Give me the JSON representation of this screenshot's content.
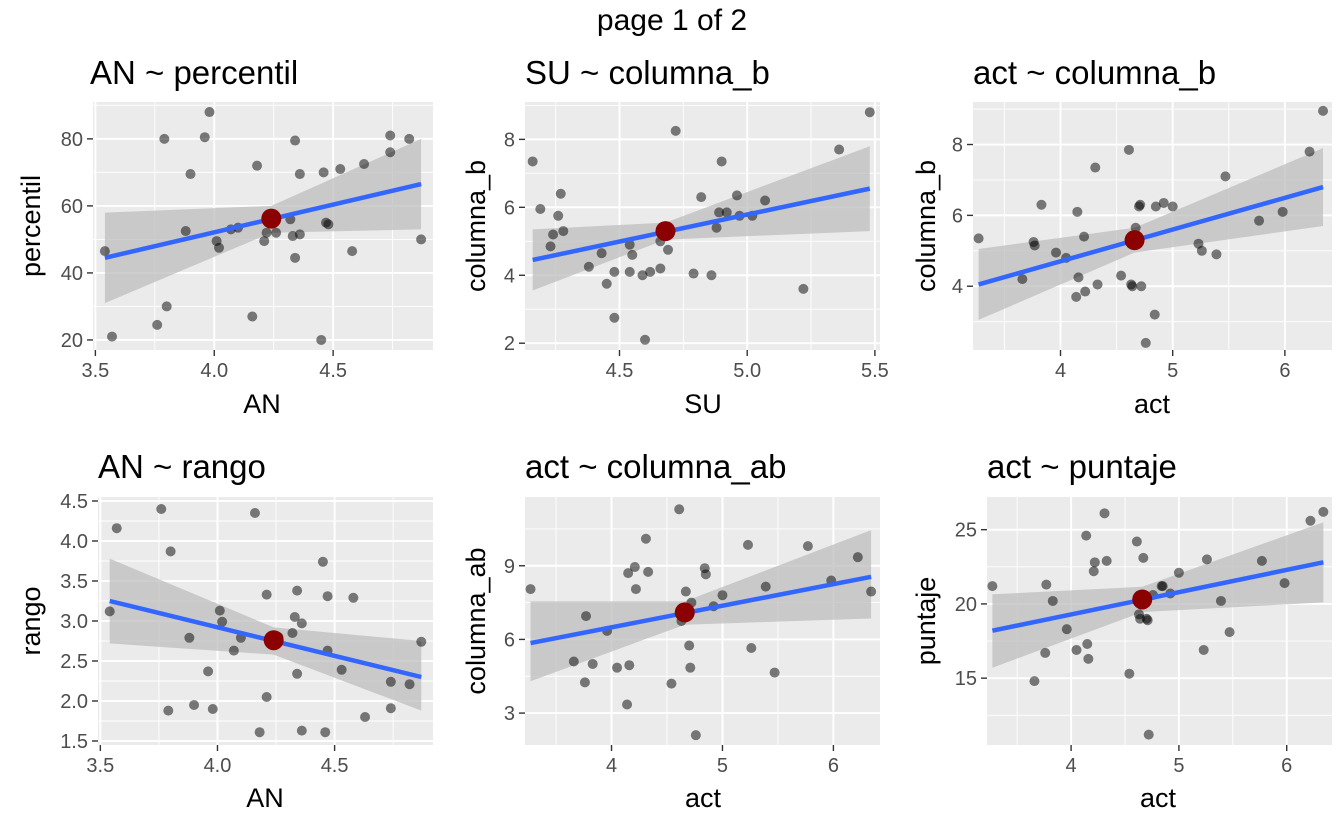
{
  "page_label": "page 1 of 2",
  "colors": {
    "panel_background": "#ebebeb",
    "grid_major": "#ffffff",
    "points": "#000000",
    "fit_line": "#3366ff",
    "ribbon": "#bebebe",
    "mean_point": "#8b0000"
  },
  "chart_data": [
    {
      "type": "scatter",
      "title": "AN ~ percentil",
      "xlabel": "AN",
      "ylabel": "percentil",
      "xlim": [
        3.49,
        4.92
      ],
      "ylim": [
        17,
        91
      ],
      "xticks": [
        3.5,
        4.0,
        4.5
      ],
      "xtick_labels": [
        "3.5",
        "4.0",
        "4.5"
      ],
      "yticks": [
        20,
        40,
        60,
        80
      ],
      "ytick_labels": [
        "20",
        "40",
        "60",
        "80"
      ],
      "points": [
        [
          3.54,
          46.5
        ],
        [
          3.57,
          21
        ],
        [
          3.76,
          24.5
        ],
        [
          3.79,
          80
        ],
        [
          3.8,
          30
        ],
        [
          3.88,
          52.5
        ],
        [
          3.9,
          69.5
        ],
        [
          3.96,
          80.5
        ],
        [
          3.98,
          88
        ],
        [
          4.01,
          49.5
        ],
        [
          4.02,
          47.5
        ],
        [
          4.07,
          53
        ],
        [
          4.1,
          53.5
        ],
        [
          4.16,
          27
        ],
        [
          4.18,
          72
        ],
        [
          4.21,
          49.5
        ],
        [
          4.22,
          52
        ],
        [
          4.26,
          52
        ],
        [
          4.32,
          56
        ],
        [
          4.33,
          51
        ],
        [
          4.34,
          79.5
        ],
        [
          4.34,
          44.5
        ],
        [
          4.36,
          69.5
        ],
        [
          4.36,
          51.5
        ],
        [
          4.45,
          20
        ],
        [
          4.46,
          70
        ],
        [
          4.47,
          55
        ],
        [
          4.48,
          54.5
        ],
        [
          4.53,
          71
        ],
        [
          4.58,
          46.5
        ],
        [
          4.63,
          72.5
        ],
        [
          4.74,
          81
        ],
        [
          4.74,
          76
        ],
        [
          4.82,
          80
        ],
        [
          4.87,
          50
        ]
      ],
      "fit": {
        "x": [
          3.54,
          4.87
        ],
        "y": [
          44.5,
          66.5
        ]
      },
      "ribbon": {
        "x": [
          3.54,
          4.24,
          4.87
        ],
        "lower": [
          31,
          52,
          53
        ],
        "upper": [
          58,
          60,
          80
        ]
      },
      "mean_point": [
        4.24,
        56.2
      ]
    },
    {
      "type": "scatter",
      "title": "SU ~ columna_b",
      "xlabel": "SU",
      "ylabel": "columna_b",
      "xlim": [
        4.13,
        5.52
      ],
      "ylim": [
        1.8,
        9.1
      ],
      "xticks": [
        4.5,
        5.0,
        5.5
      ],
      "xtick_labels": [
        "4.5",
        "5.0",
        "5.5"
      ],
      "yticks": [
        2,
        4,
        6,
        8
      ],
      "ytick_labels": [
        "2",
        "4",
        "6",
        "8"
      ],
      "points": [
        [
          4.16,
          7.35
        ],
        [
          4.19,
          5.95
        ],
        [
          4.23,
          4.85
        ],
        [
          4.24,
          5.2
        ],
        [
          4.26,
          5.75
        ],
        [
          4.27,
          6.4
        ],
        [
          4.28,
          5.3
        ],
        [
          4.38,
          4.25
        ],
        [
          4.43,
          4.65
        ],
        [
          4.45,
          3.75
        ],
        [
          4.48,
          2.75
        ],
        [
          4.48,
          4.1
        ],
        [
          4.54,
          4.1
        ],
        [
          4.54,
          4.9
        ],
        [
          4.55,
          4.6
        ],
        [
          4.59,
          4.0
        ],
        [
          4.6,
          2.1
        ],
        [
          4.62,
          4.1
        ],
        [
          4.66,
          4.2
        ],
        [
          4.66,
          5.0
        ],
        [
          4.68,
          5.3
        ],
        [
          4.69,
          4.75
        ],
        [
          4.72,
          8.25
        ],
        [
          4.79,
          4.05
        ],
        [
          4.82,
          6.3
        ],
        [
          4.86,
          4.0
        ],
        [
          4.88,
          5.4
        ],
        [
          4.89,
          5.85
        ],
        [
          4.9,
          7.35
        ],
        [
          4.92,
          5.85
        ],
        [
          4.96,
          6.35
        ],
        [
          4.97,
          5.75
        ],
        [
          5.02,
          5.75
        ],
        [
          5.07,
          6.2
        ],
        [
          5.22,
          3.6
        ],
        [
          5.36,
          7.7
        ],
        [
          5.48,
          8.8
        ]
      ],
      "fit": {
        "x": [
          4.16,
          5.48
        ],
        "y": [
          4.45,
          6.55
        ]
      },
      "ribbon": {
        "x": [
          4.16,
          4.68,
          5.48
        ],
        "lower": [
          3.55,
          5.05,
          5.3
        ],
        "upper": [
          5.35,
          5.55,
          7.8
        ]
      },
      "mean_point": [
        4.68,
        5.3
      ]
    },
    {
      "type": "scatter",
      "title": "act ~ columna_b",
      "xlabel": "act",
      "ylabel": "columna_b",
      "xlim": [
        3.22,
        6.42
      ],
      "ylim": [
        2.2,
        9.2
      ],
      "xticks": [
        4,
        5,
        6
      ],
      "xtick_labels": [
        "4",
        "5",
        "6"
      ],
      "yticks": [
        4,
        6,
        8
      ],
      "ytick_labels": [
        "4",
        "6",
        "8"
      ],
      "points": [
        [
          3.27,
          5.35
        ],
        [
          3.66,
          4.2
        ],
        [
          3.76,
          5.25
        ],
        [
          3.77,
          5.15
        ],
        [
          3.83,
          6.3
        ],
        [
          3.96,
          4.95
        ],
        [
          4.05,
          4.8
        ],
        [
          4.14,
          3.7
        ],
        [
          4.15,
          6.1
        ],
        [
          4.16,
          4.25
        ],
        [
          4.21,
          5.4
        ],
        [
          4.22,
          3.85
        ],
        [
          4.31,
          7.35
        ],
        [
          4.33,
          4.05
        ],
        [
          4.54,
          4.3
        ],
        [
          4.61,
          7.85
        ],
        [
          4.63,
          4.05
        ],
        [
          4.64,
          4.0
        ],
        [
          4.67,
          5.65
        ],
        [
          4.7,
          6.25
        ],
        [
          4.71,
          6.3
        ],
        [
          4.72,
          4.0
        ],
        [
          4.76,
          2.4
        ],
        [
          4.84,
          3.2
        ],
        [
          4.85,
          6.25
        ],
        [
          4.92,
          6.35
        ],
        [
          5.0,
          6.25
        ],
        [
          5.23,
          5.2
        ],
        [
          5.26,
          5.0
        ],
        [
          5.39,
          4.9
        ],
        [
          5.47,
          7.1
        ],
        [
          5.77,
          5.85
        ],
        [
          5.98,
          6.1
        ],
        [
          6.22,
          7.8
        ],
        [
          6.34,
          8.95
        ]
      ],
      "fit": {
        "x": [
          3.27,
          6.34
        ],
        "y": [
          4.05,
          6.8
        ]
      },
      "ribbon": {
        "x": [
          3.27,
          4.66,
          6.34
        ],
        "lower": [
          3.05,
          4.95,
          5.7
        ],
        "upper": [
          5.05,
          5.65,
          7.9
        ]
      },
      "mean_point": [
        4.66,
        5.3
      ]
    },
    {
      "type": "scatter",
      "title": "AN ~ rango",
      "xlabel": "AN",
      "ylabel": "rango",
      "xlim": [
        3.49,
        4.92
      ],
      "ylim": [
        1.45,
        4.55
      ],
      "xticks": [
        3.5,
        4.0,
        4.5
      ],
      "xtick_labels": [
        "3.5",
        "4.0",
        "4.5"
      ],
      "yticks": [
        1.5,
        2.0,
        2.5,
        3.0,
        3.5,
        4.0,
        4.5
      ],
      "ytick_labels": [
        "1.5",
        "2.0",
        "2.5",
        "3.0",
        "3.5",
        "4.0",
        "4.5"
      ],
      "points": [
        [
          3.54,
          3.12
        ],
        [
          3.57,
          4.16
        ],
        [
          3.76,
          4.4
        ],
        [
          3.79,
          1.88
        ],
        [
          3.8,
          3.87
        ],
        [
          3.88,
          2.79
        ],
        [
          3.9,
          1.95
        ],
        [
          3.96,
          2.37
        ],
        [
          3.98,
          1.9
        ],
        [
          4.01,
          3.13
        ],
        [
          4.02,
          2.99
        ],
        [
          4.07,
          2.63
        ],
        [
          4.1,
          2.79
        ],
        [
          4.16,
          4.35
        ],
        [
          4.18,
          1.61
        ],
        [
          4.21,
          3.33
        ],
        [
          4.21,
          2.05
        ],
        [
          4.26,
          2.8
        ],
        [
          4.32,
          2.85
        ],
        [
          4.33,
          3.05
        ],
        [
          4.34,
          2.34
        ],
        [
          4.34,
          3.38
        ],
        [
          4.36,
          1.63
        ],
        [
          4.36,
          2.97
        ],
        [
          4.45,
          3.74
        ],
        [
          4.46,
          1.61
        ],
        [
          4.47,
          3.31
        ],
        [
          4.47,
          2.63
        ],
        [
          4.53,
          2.39
        ],
        [
          4.58,
          3.29
        ],
        [
          4.63,
          1.8
        ],
        [
          4.74,
          2.24
        ],
        [
          4.74,
          1.91
        ],
        [
          4.82,
          2.21
        ],
        [
          4.87,
          2.74
        ]
      ],
      "fit": {
        "x": [
          3.54,
          4.87
        ],
        "y": [
          3.25,
          2.3
        ]
      },
      "ribbon": {
        "x": [
          3.54,
          4.24,
          4.87
        ],
        "lower": [
          2.72,
          2.58,
          1.88
        ],
        "upper": [
          3.78,
          2.92,
          2.75
        ]
      },
      "mean_point": [
        4.24,
        2.76
      ]
    },
    {
      "type": "scatter",
      "title": "act ~ columna_ab",
      "xlabel": "act",
      "ylabel": "columna_ab",
      "xlim": [
        3.22,
        6.42
      ],
      "ylim": [
        1.7,
        11.8
      ],
      "xticks": [
        4,
        5,
        6
      ],
      "xtick_labels": [
        "4",
        "5",
        "6"
      ],
      "yticks": [
        3,
        6,
        9
      ],
      "ytick_labels": [
        "3",
        "6",
        "9"
      ],
      "points": [
        [
          3.27,
          8.05
        ],
        [
          3.66,
          5.1
        ],
        [
          3.76,
          4.25
        ],
        [
          3.77,
          6.95
        ],
        [
          3.83,
          5.0
        ],
        [
          3.96,
          6.35
        ],
        [
          4.05,
          4.85
        ],
        [
          4.14,
          3.35
        ],
        [
          4.15,
          8.7
        ],
        [
          4.16,
          4.95
        ],
        [
          4.21,
          8.95
        ],
        [
          4.22,
          8.05
        ],
        [
          4.31,
          10.1
        ],
        [
          4.33,
          8.75
        ],
        [
          4.54,
          4.2
        ],
        [
          4.61,
          11.3
        ],
        [
          4.63,
          6.75
        ],
        [
          4.64,
          7.05
        ],
        [
          4.67,
          7.95
        ],
        [
          4.7,
          5.75
        ],
        [
          4.71,
          4.85
        ],
        [
          4.72,
          7.5
        ],
        [
          4.76,
          2.1
        ],
        [
          4.84,
          8.9
        ],
        [
          4.85,
          8.65
        ],
        [
          4.92,
          7.35
        ],
        [
          5.0,
          7.8
        ],
        [
          5.23,
          9.85
        ],
        [
          5.26,
          5.65
        ],
        [
          5.39,
          8.15
        ],
        [
          5.47,
          4.65
        ],
        [
          5.77,
          9.8
        ],
        [
          5.98,
          8.4
        ],
        [
          6.22,
          9.35
        ],
        [
          6.34,
          7.95
        ]
      ],
      "fit": {
        "x": [
          3.27,
          6.34
        ],
        "y": [
          5.85,
          8.55
        ]
      },
      "ribbon": {
        "x": [
          3.27,
          4.66,
          6.34
        ],
        "lower": [
          4.3,
          6.6,
          6.85
        ],
        "upper": [
          7.55,
          7.55,
          10.45
        ]
      },
      "mean_point": [
        4.66,
        7.1
      ]
    },
    {
      "type": "scatter",
      "title": "act ~ puntaje",
      "xlabel": "act",
      "ylabel": "puntaje",
      "xlim": [
        3.22,
        6.42
      ],
      "ylim": [
        10.5,
        27.2
      ],
      "xticks": [
        4,
        5,
        6
      ],
      "xtick_labels": [
        "4",
        "5",
        "6"
      ],
      "yticks": [
        15,
        20,
        25
      ],
      "ytick_labels": [
        "15",
        "20",
        "25"
      ],
      "points": [
        [
          3.27,
          21.2
        ],
        [
          3.66,
          14.8
        ],
        [
          3.76,
          16.7
        ],
        [
          3.77,
          21.3
        ],
        [
          3.83,
          20.2
        ],
        [
          3.96,
          18.3
        ],
        [
          4.05,
          16.9
        ],
        [
          4.14,
          24.6
        ],
        [
          4.15,
          17.3
        ],
        [
          4.16,
          16.3
        ],
        [
          4.21,
          22.2
        ],
        [
          4.22,
          22.8
        ],
        [
          4.31,
          26.1
        ],
        [
          4.33,
          22.9
        ],
        [
          4.54,
          15.3
        ],
        [
          4.61,
          24.2
        ],
        [
          4.63,
          19.3
        ],
        [
          4.64,
          19.0
        ],
        [
          4.67,
          23.1
        ],
        [
          4.7,
          19.0
        ],
        [
          4.71,
          18.9
        ],
        [
          4.72,
          11.2
        ],
        [
          4.76,
          20.6
        ],
        [
          4.84,
          21.2
        ],
        [
          4.85,
          21.2
        ],
        [
          4.92,
          20.7
        ],
        [
          5.0,
          22.1
        ],
        [
          5.23,
          16.9
        ],
        [
          5.26,
          23.0
        ],
        [
          5.39,
          20.2
        ],
        [
          5.47,
          18.1
        ],
        [
          5.77,
          22.9
        ],
        [
          5.98,
          21.4
        ],
        [
          6.22,
          25.6
        ],
        [
          6.34,
          26.2
        ]
      ],
      "fit": {
        "x": [
          3.27,
          6.34
        ],
        "y": [
          18.2,
          22.8
        ]
      },
      "ribbon": {
        "x": [
          3.27,
          4.66,
          6.34
        ],
        "lower": [
          15.7,
          19.45,
          20.1
        ],
        "upper": [
          20.65,
          21.15,
          25.5
        ]
      },
      "mean_point": [
        4.66,
        20.3
      ]
    }
  ]
}
